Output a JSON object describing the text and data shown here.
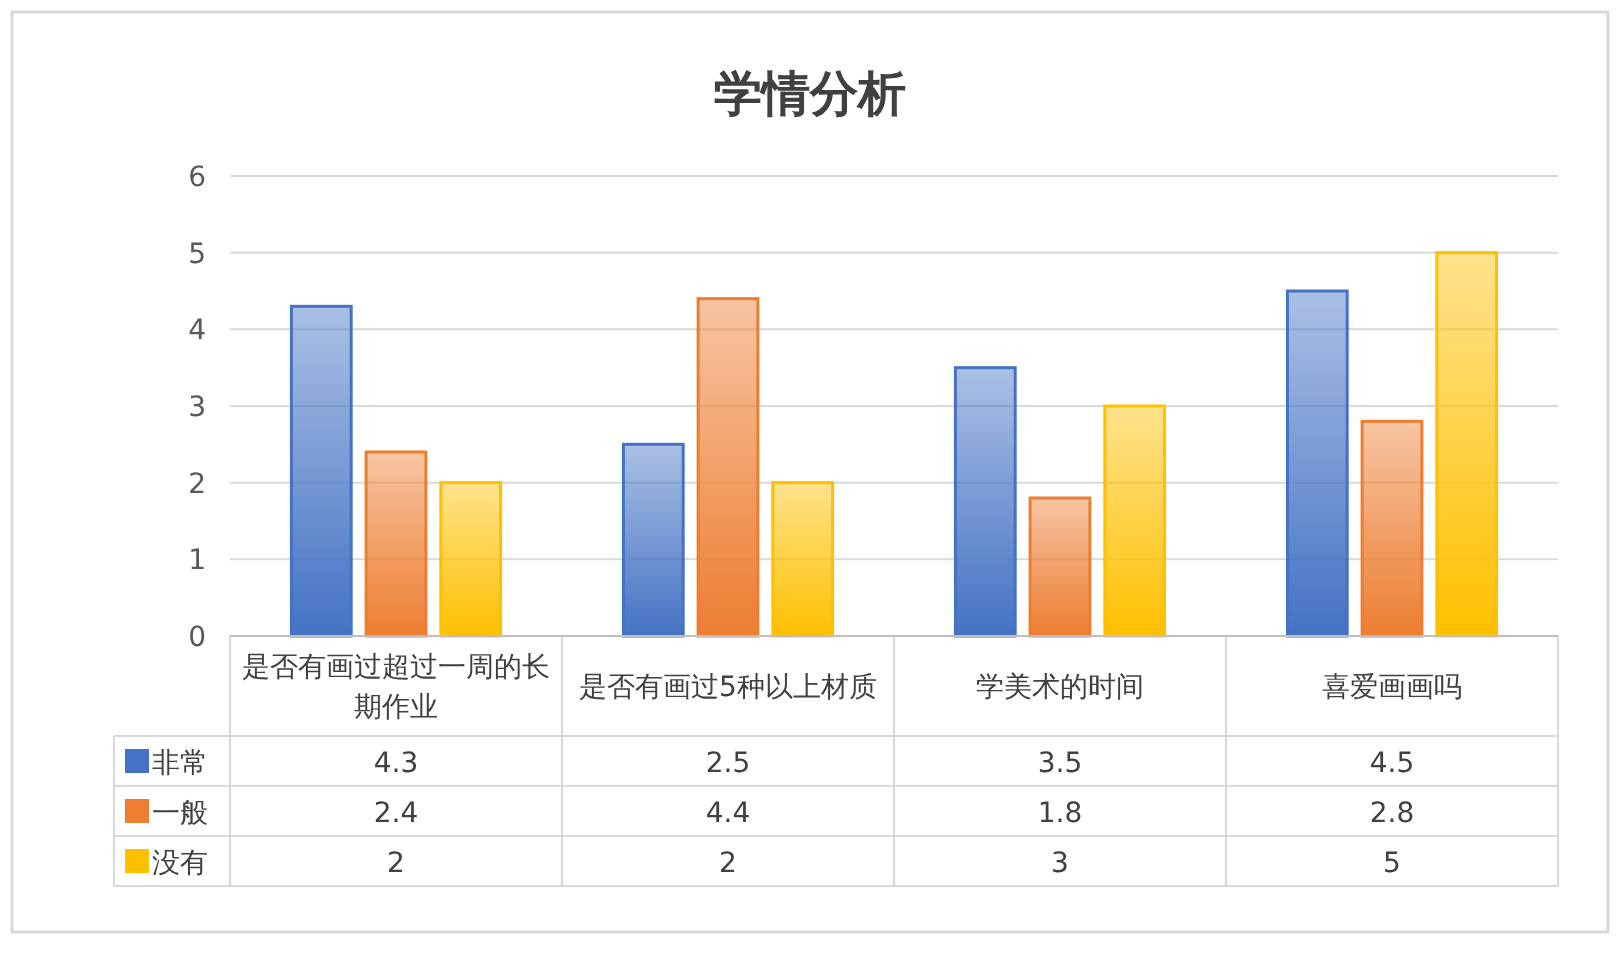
{
  "chart_data": {
    "type": "bar",
    "title": "学情分析",
    "categories": [
      "是否有画过超过一周的长期作业",
      "是否有画过5种以上材质",
      "学美术的时间",
      "喜爱画画吗"
    ],
    "series": [
      {
        "name": "非常",
        "color": "#4472c4",
        "values": [
          4.3,
          2.5,
          3.5,
          4.5
        ]
      },
      {
        "name": "一般",
        "color": "#ed7d31",
        "values": [
          2.4,
          4.4,
          1.8,
          2.8
        ]
      },
      {
        "name": "没有",
        "color": "#ffc000",
        "values": [
          2,
          2,
          3,
          5
        ]
      }
    ],
    "ylim": [
      0,
      6
    ],
    "yticks": [
      0,
      1,
      2,
      3,
      4,
      5,
      6
    ],
    "grid": "y",
    "legend": "bottom",
    "data_labels": true
  }
}
